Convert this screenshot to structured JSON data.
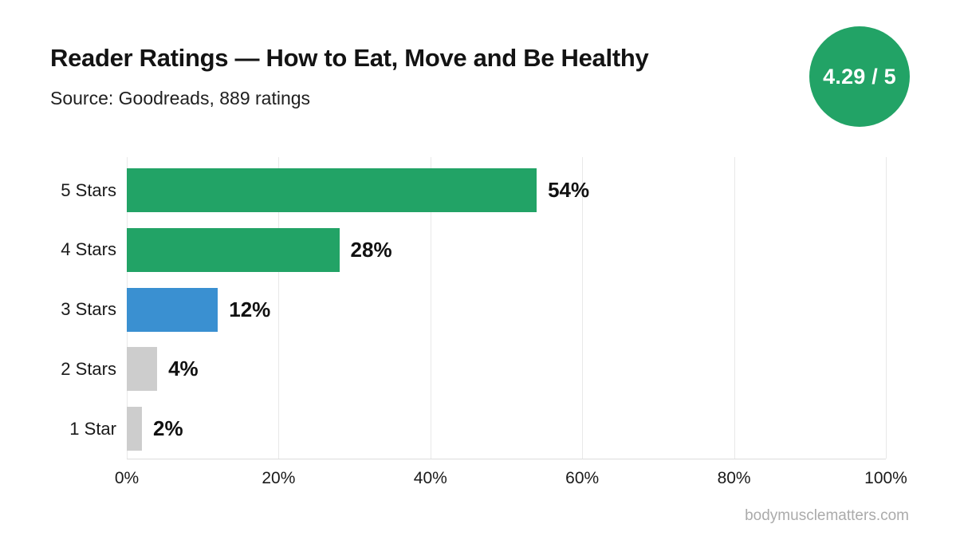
{
  "header": {
    "title": "Reader Ratings — How to Eat, Move and Be Healthy",
    "source": "Source: Goodreads, 889 ratings",
    "badge": "4.29 / 5"
  },
  "footer": {
    "watermark": "bodymusclematters.com"
  },
  "colors": {
    "green": "#22a366",
    "blue": "#3a90d1",
    "gray": "#cdcdcd",
    "badge_bg": "#22a366",
    "badge_text": "#ffffff",
    "gridline": "#e8e8e8",
    "axis_line": "#dcdcdc",
    "text": "#131313",
    "muted": "#ababab"
  },
  "chart_data": {
    "type": "bar",
    "orientation": "horizontal",
    "title": "Reader Ratings — How to Eat, Move and Be Healthy",
    "subtitle": "Source: Goodreads, 889 ratings",
    "categories": [
      "5 Stars",
      "4 Stars",
      "3 Stars",
      "2 Stars",
      "1 Star"
    ],
    "values": [
      54,
      28,
      12,
      4,
      2
    ],
    "value_labels": [
      "54%",
      "28%",
      "12%",
      "4%",
      "2%"
    ],
    "bar_colors": [
      "#22a366",
      "#22a366",
      "#3a90d1",
      "#cdcdcd",
      "#cdcdcd"
    ],
    "x_ticks": [
      "0%",
      "20%",
      "40%",
      "60%",
      "80%",
      "100%"
    ],
    "x_tick_values": [
      0,
      20,
      40,
      60,
      80,
      100
    ],
    "xlim": [
      0,
      100
    ],
    "grid": true,
    "xlabel": "",
    "ylabel": ""
  }
}
